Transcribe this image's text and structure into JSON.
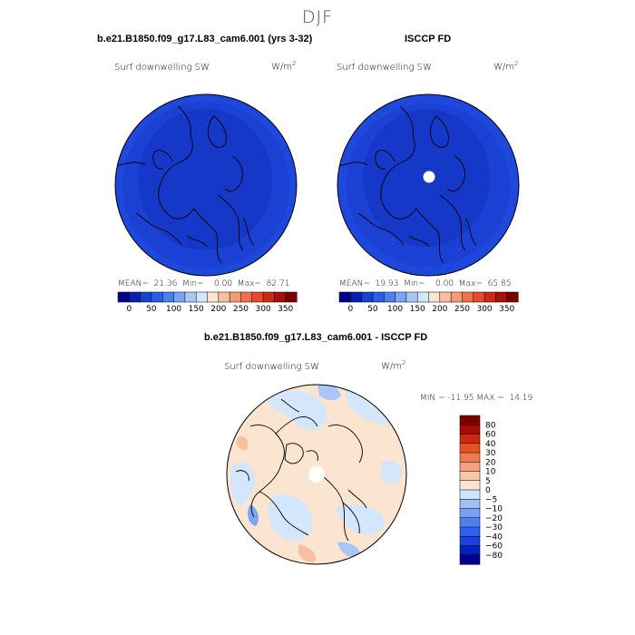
{
  "title": "DJF",
  "panels": {
    "model": {
      "title": "b.e21.B1850.f09_g17.L83_cam6.001 (yrs 3-32)",
      "variable": "Surf downwelling SW",
      "units_base": "W/m",
      "units_exp": "2",
      "stats": "MEAN=  21.36  Min=    0.00  Max=  82.71"
    },
    "obs": {
      "title": "ISCCP FD",
      "variable": "Surf downwelling SW",
      "units_base": "W/m",
      "units_exp": "2",
      "stats": "MEAN=  19.93  Min=    0.00  Max=  65.85"
    },
    "diff": {
      "title": "b.e21.B1850.f09_g17.L83_cam6.001 - ISCCP FD",
      "variable": "Surf downwelling SW",
      "units_base": "W/m",
      "units_exp": "2",
      "stats": "MIN = -11.95 MAX =  14.19"
    }
  },
  "colorbars": {
    "main": {
      "colors": [
        "#00008b",
        "#0a1fb0",
        "#1642cf",
        "#2a5ee8",
        "#4a80f0",
        "#7aa4f4",
        "#a8c6f8",
        "#d4e6fb",
        "#fbe4d0",
        "#f8c0a0",
        "#f59a76",
        "#f0704e",
        "#e44a2c",
        "#cc2a14",
        "#a81005",
        "#7a0000"
      ],
      "tick_labels": [
        "0",
        "50",
        "100",
        "150",
        "200",
        "250",
        "300",
        "350"
      ]
    },
    "diff": {
      "colors": [
        "#00008b",
        "#0020c0",
        "#1a40e0",
        "#3060f0",
        "#5080f0",
        "#7aa0f4",
        "#a0c0f8",
        "#d0e4fb",
        "#fbe4d0",
        "#f8c8a8",
        "#f5a080",
        "#f07850",
        "#e85020",
        "#d02810",
        "#a80a00",
        "#7a0000"
      ],
      "tick_labels": [
        "80",
        "60",
        "40",
        "30",
        "20",
        "10",
        "5",
        "0",
        "−5",
        "−10",
        "−20",
        "−30",
        "−40",
        "−60",
        "−80"
      ]
    }
  },
  "chart_data": [
    {
      "type": "heatmap",
      "title": "b.e21.B1850.f09_g17.L83_cam6.001 (yrs 3-32)",
      "variable": "Surf downwelling SW",
      "units": "W/m2",
      "projection": "north polar stereographic",
      "stats": {
        "mean": 21.36,
        "min": 0.0,
        "max": 82.71
      },
      "color_levels": [
        0,
        25,
        50,
        75,
        100,
        125,
        150,
        175,
        200,
        225,
        250,
        275,
        300,
        325,
        350
      ],
      "colorbar_ticks": [
        0,
        50,
        100,
        150,
        200,
        250,
        300,
        350
      ]
    },
    {
      "type": "heatmap",
      "title": "ISCCP FD",
      "variable": "Surf downwelling SW",
      "units": "W/m2",
      "projection": "north polar stereographic",
      "stats": {
        "mean": 19.93,
        "min": 0.0,
        "max": 65.85
      },
      "color_levels": [
        0,
        25,
        50,
        75,
        100,
        125,
        150,
        175,
        200,
        225,
        250,
        275,
        300,
        325,
        350
      ],
      "colorbar_ticks": [
        0,
        50,
        100,
        150,
        200,
        250,
        300,
        350
      ]
    },
    {
      "type": "heatmap",
      "title": "b.e21.B1850.f09_g17.L83_cam6.001 - ISCCP FD",
      "variable": "Surf downwelling SW",
      "units": "W/m2",
      "projection": "north polar stereographic",
      "stats": {
        "min": -11.95,
        "max": 14.19
      },
      "color_levels": [
        -80,
        -60,
        -40,
        -30,
        -20,
        -10,
        -5,
        0,
        5,
        10,
        20,
        30,
        40,
        60,
        80
      ]
    }
  ]
}
